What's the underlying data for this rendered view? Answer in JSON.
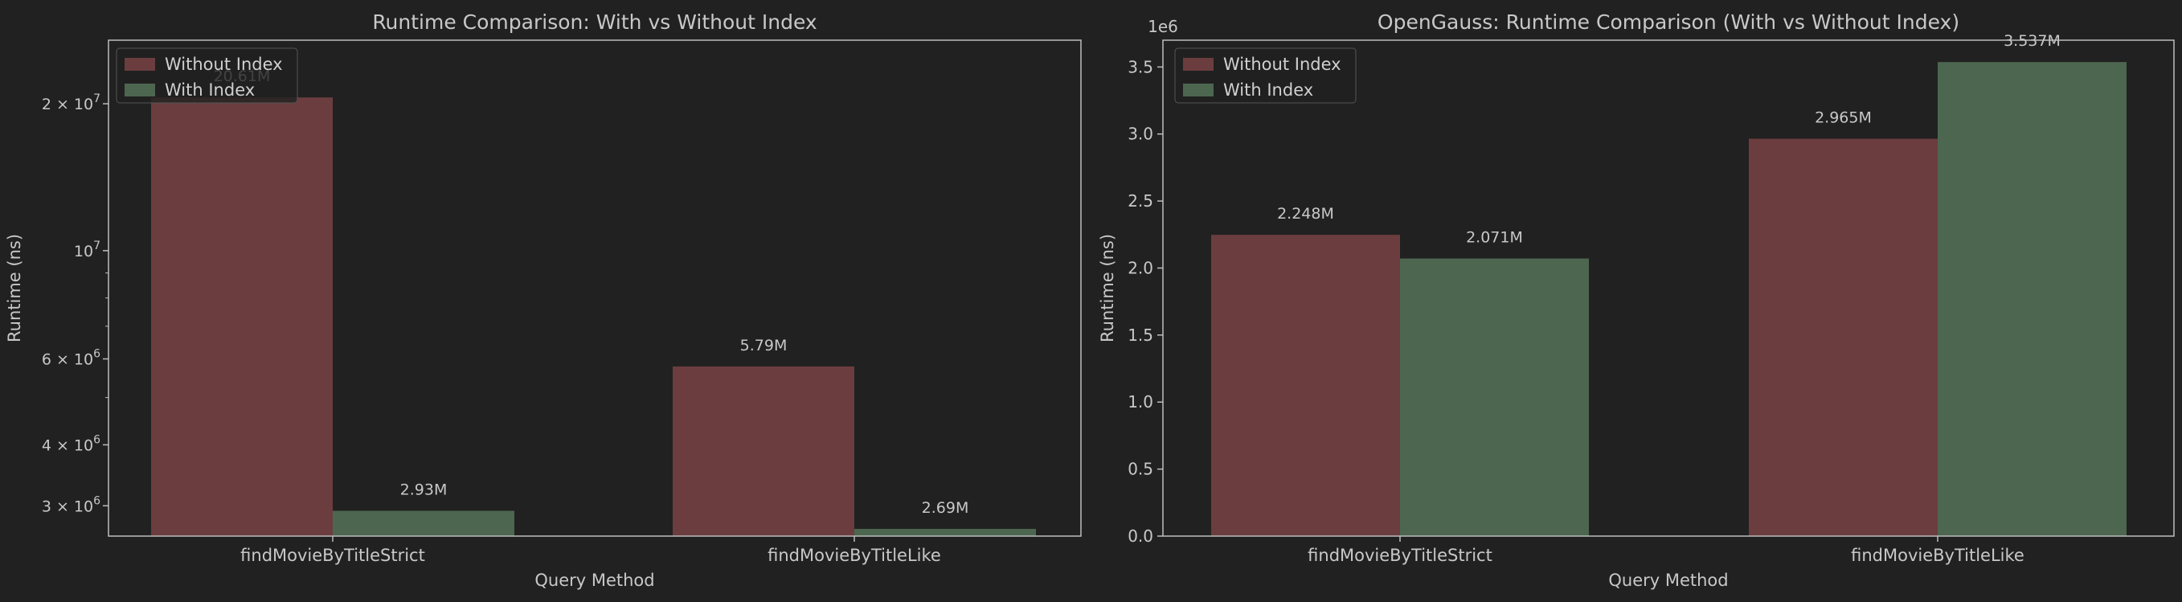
{
  "chart_data": [
    {
      "type": "bar",
      "title": "Runtime Comparison: With vs Without Index",
      "xlabel": "Query Method",
      "ylabel": "Runtime (ns)",
      "yscale": "log",
      "ylim": [
        2600000,
        27000000
      ],
      "grid": false,
      "legend": "top-left",
      "categories": [
        "findMovieByTitleStrict",
        "findMovieByTitleLike"
      ],
      "series": [
        {
          "name": "Without Index",
          "color": "#6b3d3f",
          "values": [
            20610000,
            5790000
          ],
          "labels": [
            "20.61M",
            "5.79M"
          ]
        },
        {
          "name": "With Index",
          "color": "#4d6650",
          "values": [
            2930000,
            2690000
          ],
          "labels": [
            "2.93M",
            "2.69M"
          ]
        }
      ],
      "yticks": [
        {
          "value": 20000000,
          "base": "2 × 10",
          "exp": "7"
        },
        {
          "value": 10000000,
          "base": "10",
          "exp": "7"
        },
        {
          "value": 6000000,
          "base": "6 × 10",
          "exp": "6"
        },
        {
          "value": 4000000,
          "base": "4 × 10",
          "exp": "6"
        },
        {
          "value": 3000000,
          "base": "3 × 10",
          "exp": "6"
        }
      ],
      "yminor": [
        5000000,
        7000000,
        8000000,
        9000000
      ]
    },
    {
      "type": "bar",
      "title": "OpenGauss: Runtime Comparison (With vs Without Index)",
      "xlabel": "Query Method",
      "ylabel": "Runtime (ns)",
      "yscale": "linear",
      "ylim": [
        0,
        3700000
      ],
      "grid": false,
      "legend": "top-left",
      "offset_label": "1e6",
      "categories": [
        "findMovieByTitleStrict",
        "findMovieByTitleLike"
      ],
      "series": [
        {
          "name": "Without Index",
          "color": "#6b3d3f",
          "values": [
            2248000,
            2965000
          ],
          "labels": [
            "2.248M",
            "2.965M"
          ]
        },
        {
          "name": "With Index",
          "color": "#4d6650",
          "values": [
            2071000,
            3537000
          ],
          "labels": [
            "2.071M",
            "3.537M"
          ]
        }
      ],
      "yticks": [
        {
          "value": 0,
          "label": "0.0"
        },
        {
          "value": 500000,
          "label": "0.5"
        },
        {
          "value": 1000000,
          "label": "1.0"
        },
        {
          "value": 1500000,
          "label": "1.5"
        },
        {
          "value": 2000000,
          "label": "2.0"
        },
        {
          "value": 2500000,
          "label": "2.5"
        },
        {
          "value": 3000000,
          "label": "3.0"
        },
        {
          "value": 3500000,
          "label": "3.5"
        }
      ]
    }
  ]
}
